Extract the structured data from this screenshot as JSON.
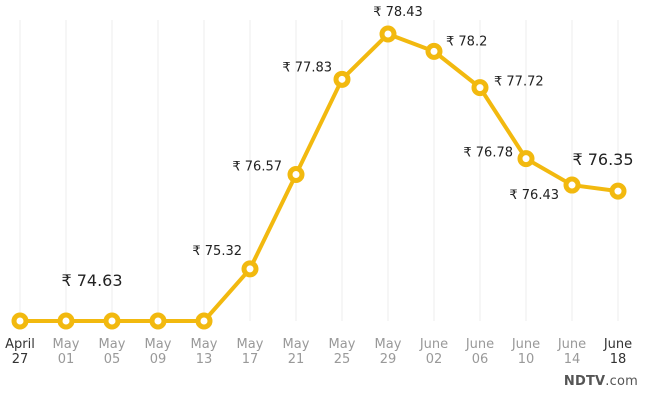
{
  "chart_data": {
    "type": "line",
    "title": "",
    "xlabel": "",
    "ylabel": "",
    "currency_symbol": "₹",
    "categories": [
      [
        "April",
        "27"
      ],
      [
        "May",
        "01"
      ],
      [
        "May",
        "05"
      ],
      [
        "May",
        "09"
      ],
      [
        "May",
        "13"
      ],
      [
        "May",
        "17"
      ],
      [
        "May",
        "21"
      ],
      [
        "May",
        "25"
      ],
      [
        "May",
        "29"
      ],
      [
        "June",
        "02"
      ],
      [
        "June",
        "06"
      ],
      [
        "June",
        "10"
      ],
      [
        "June",
        "14"
      ],
      [
        "June",
        "18"
      ]
    ],
    "values": [
      74.63,
      74.63,
      74.63,
      74.63,
      74.63,
      75.32,
      76.57,
      77.83,
      78.43,
      78.2,
      77.72,
      76.78,
      76.43,
      76.35
    ],
    "point_labels": [
      {
        "index": 1,
        "text": "₹ 74.63",
        "highlight": true
      },
      {
        "index": 5,
        "text": "₹ 75.32",
        "highlight": false
      },
      {
        "index": 6,
        "text": "₹ 76.57",
        "highlight": false
      },
      {
        "index": 7,
        "text": "₹ 77.83",
        "highlight": false
      },
      {
        "index": 8,
        "text": "₹ 78.43",
        "highlight": false
      },
      {
        "index": 9,
        "text": "₹ 78.2",
        "highlight": false
      },
      {
        "index": 10,
        "text": "₹ 77.72",
        "highlight": false
      },
      {
        "index": 11,
        "text": "₹ 76.78",
        "highlight": false
      },
      {
        "index": 12,
        "text": "₹ 76.43",
        "highlight": false
      },
      {
        "index": 13,
        "text": "₹ 76.35",
        "highlight": true
      }
    ],
    "emphasized_ticks": [
      0,
      13
    ],
    "ylim": [
      74.63,
      78.43
    ],
    "grid": "vertical",
    "legend": "none",
    "colors": {
      "line": "#F2B90F",
      "highlight_label": "#F2B90F"
    }
  },
  "branding": {
    "logo_main": "NDTV",
    "logo_suffix": ".com"
  }
}
